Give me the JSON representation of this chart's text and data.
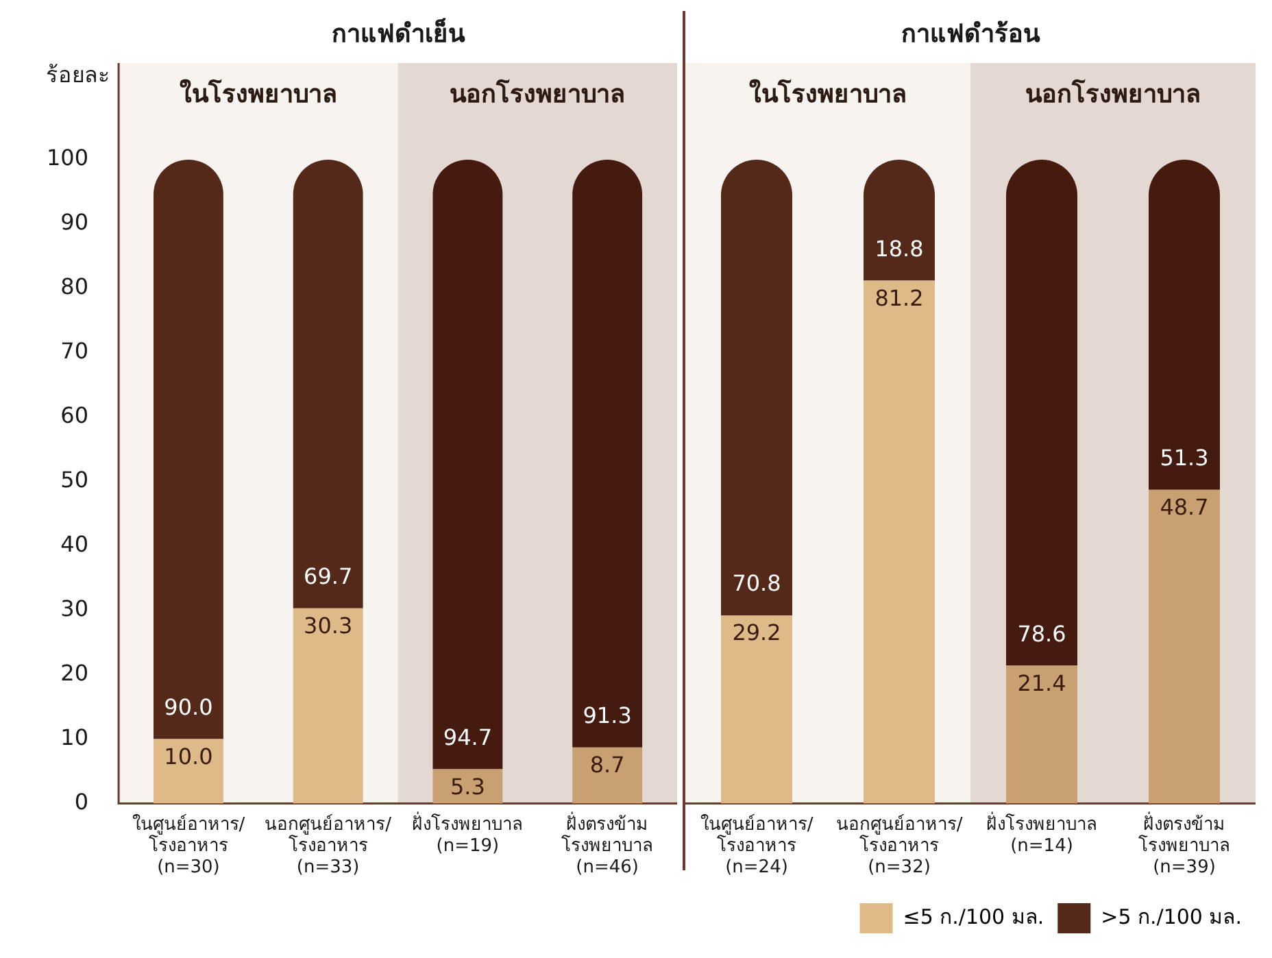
{
  "chart_data": [
    {
      "type": "bar",
      "stacked": true,
      "title": "กาแฟดำเย็น",
      "ylabel": "ร้อยละ",
      "categories": [
        "ในศูนย์อาหาร/\nโรงอาหาร\n(n=30)",
        "นอกศูนย์อาหาร/\nโรงอาหาร\n(n=33)",
        "ฝั่งโรงพยาบาล\n(n=19)",
        "ฝั่งตรงข้าม\nโรงพยาบาล\n(n=46)"
      ],
      "series": [
        {
          "color": "#deba88",
          "colors": [
            "#deba88",
            "#deba88",
            "#c9a072",
            "#c9a072"
          ],
          "values": [
            10.0,
            30.3,
            5.3,
            8.7
          ],
          "value_labels": [
            "10.0",
            "30.3",
            "5.3",
            "8.7"
          ]
        },
        {
          "color": "#54291a",
          "colors": [
            "#54291a",
            "#54291a",
            "#451b10",
            "#451b10"
          ],
          "values": [
            90.0,
            69.7,
            94.7,
            91.3
          ],
          "value_labels": [
            "90.0",
            "69.7",
            "94.7",
            "91.3"
          ]
        }
      ],
      "ylim": [
        0,
        115
      ],
      "yticks": [
        0,
        10,
        20,
        30,
        40,
        50,
        60,
        70,
        80,
        90,
        100
      ],
      "grid": false,
      "bands": [
        {
          "axis": "x",
          "from": "ในศูนย์อาหาร/\nโรงอาหาร\n(n=30)",
          "to": "นอกศูนย์อาหาร/\nโรงอาหาร\n(n=33)",
          "label": "ในโรงพยาบาล",
          "color": "#f7f3ee"
        },
        {
          "axis": "x",
          "from": "ฝั่งโรงพยาบาล\n(n=19)",
          "to": "ฝั่งตรงข้าม\nโรงพยาบาล\n(n=46)",
          "label": "นอกโรงพยาบาล",
          "color": "#e4d8d2"
        }
      ]
    },
    {
      "type": "bar",
      "stacked": true,
      "title": "กาแฟดำร้อน",
      "categories": [
        "ในศูนย์อาหาร/\nโรงอาหาร\n(n=24)",
        "นอกศูนย์อาหาร/\nโรงอาหาร\n(n=32)",
        "ฝั่งโรงพยาบาล\n(n=14)",
        "ฝั่งตรงข้าม\nโรงพยาบาล\n(n=39)"
      ],
      "series": [
        {
          "name": "≤5 ก./100 มล.",
          "color": "#deba88",
          "colors": [
            "#deba88",
            "#deba88",
            "#c9a072",
            "#c9a072"
          ],
          "values": [
            29.2,
            81.2,
            21.4,
            48.7
          ],
          "value_labels": [
            "29.2",
            "81.2",
            "21.4",
            "48.7"
          ]
        },
        {
          "name": ">5 ก./100 มล.",
          "color": "#54291a",
          "colors": [
            "#54291a",
            "#54291a",
            "#451b10",
            "#451b10"
          ],
          "values": [
            70.8,
            18.8,
            78.6,
            51.3
          ],
          "value_labels": [
            "70.8",
            "18.8",
            "78.6",
            "51.3"
          ]
        }
      ],
      "ylim": [
        0,
        115
      ],
      "yticks": [
        0,
        10,
        20,
        30,
        40,
        50,
        60,
        70,
        80,
        90,
        100
      ],
      "grid": false,
      "tick_labels": "x",
      "legend": "bottom right",
      "bands": [
        {
          "axis": "x",
          "from": "ในศูนย์อาหาร/\nโรงอาหาร\n(n=24)",
          "to": "นอกศูนย์อาหาร/\nโรงอาหาร\n(n=32)",
          "label": "ในโรงพยาบาล",
          "color": "#f7f3ee"
        },
        {
          "axis": "x",
          "from": "ฝั่งโรงพยาบาล\n(n=14)",
          "to": "ฝั่งตรงข้าม\nโรงพยาบาล\n(n=39)",
          "label": "นอกโรงพยาบาล",
          "color": "#e4d8d2"
        }
      ]
    }
  ]
}
